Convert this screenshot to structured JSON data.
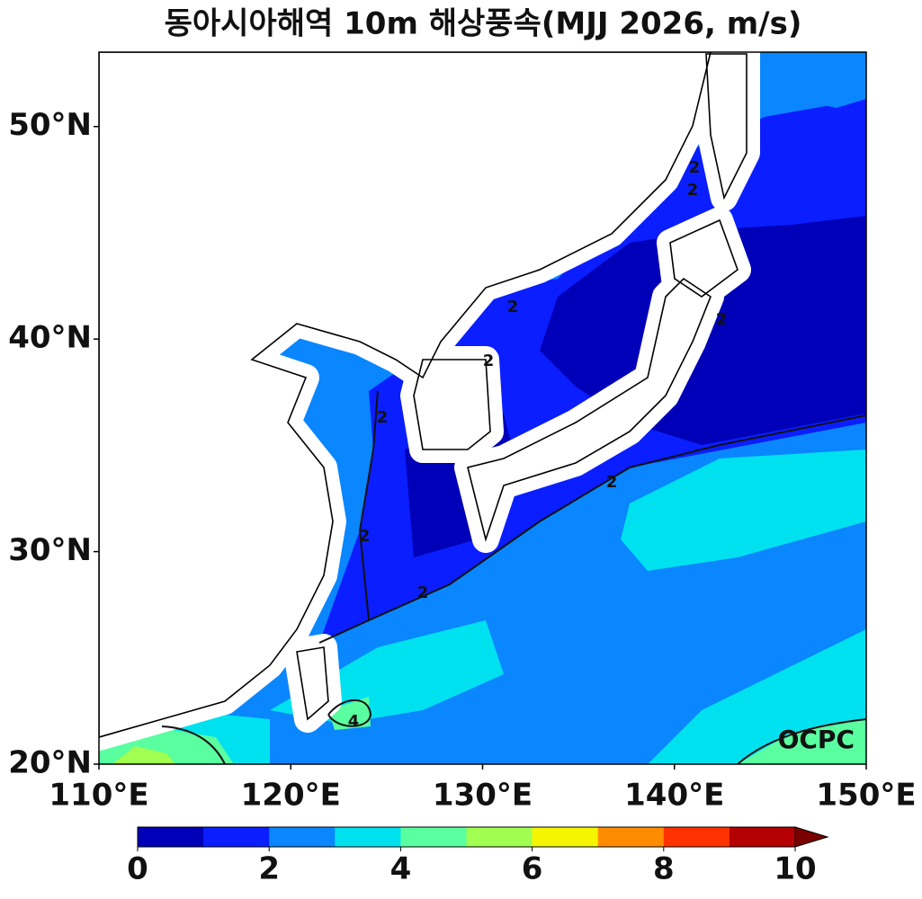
{
  "title": "동아시아해역 10m 해상풍속(MJJ 2026, m/s)",
  "xlim": [
    110,
    150
  ],
  "xticks": [
    {
      "value": 110,
      "label": "110°E"
    },
    {
      "value": 120,
      "label": "120°E"
    },
    {
      "value": 130,
      "label": "130°E"
    },
    {
      "value": 140,
      "label": "140°E"
    },
    {
      "value": 150,
      "label": "150°E"
    }
  ],
  "ylim": [
    20,
    53.5
  ],
  "yticks": [
    {
      "value": 20,
      "label": "20°N"
    },
    {
      "value": 30,
      "label": "30°N"
    },
    {
      "value": 40,
      "label": "40°N"
    },
    {
      "value": 50,
      "label": "50°N"
    }
  ],
  "colorbar": {
    "clim": [
      0,
      10
    ],
    "ticks": [
      0,
      2,
      4,
      6,
      8,
      10
    ],
    "colors": [
      "#0000b8",
      "#0a1eff",
      "#0a86ff",
      "#00e1f0",
      "#5affa0",
      "#a0ff50",
      "#f5f500",
      "#ff8c00",
      "#ff3200",
      "#b40000"
    ],
    "extend_color": "#7a0000"
  },
  "contour_labels": [
    2,
    2,
    2,
    2,
    2,
    2,
    2,
    2,
    2,
    4
  ],
  "credit": "OCPC"
}
